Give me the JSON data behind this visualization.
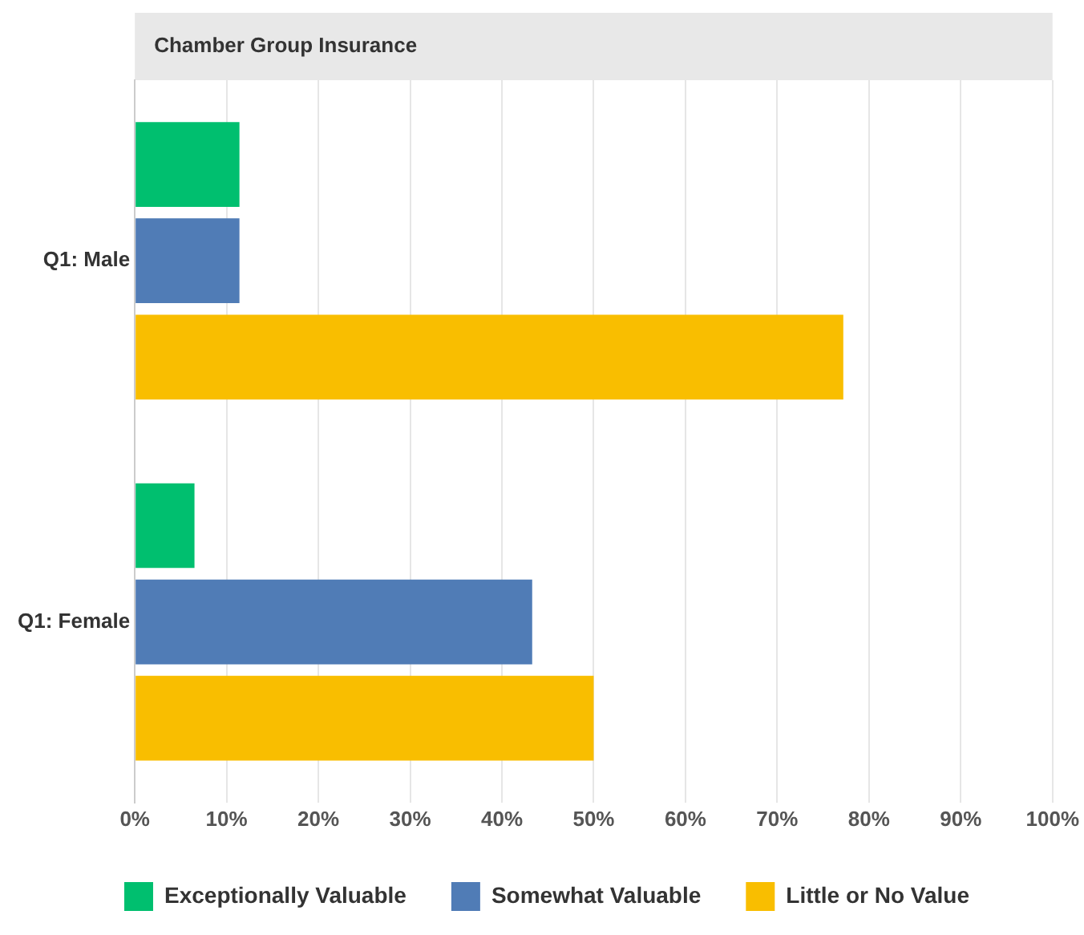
{
  "chart_data": {
    "type": "bar",
    "orientation": "horizontal",
    "title": "Chamber Group Insurance",
    "categories": [
      "Q1: Male",
      "Q1: Female"
    ],
    "series": [
      {
        "name": "Exceptionally Valuable",
        "color": "#00bf6f",
        "values": [
          11.4,
          6.5
        ]
      },
      {
        "name": "Somewhat Valuable",
        "color": "#507cb6",
        "values": [
          11.4,
          43.3
        ]
      },
      {
        "name": "Little or No Value",
        "color": "#f9be00",
        "values": [
          77.2,
          50
        ]
      }
    ],
    "xlim": [
      0,
      100
    ],
    "xticks": [
      {
        "value": 0,
        "label": "0%"
      },
      {
        "value": 10,
        "label": "10%"
      },
      {
        "value": 20,
        "label": "20%"
      },
      {
        "value": 30,
        "label": "30%"
      },
      {
        "value": 40,
        "label": "40%"
      },
      {
        "value": 50,
        "label": "50%"
      },
      {
        "value": 60,
        "label": "60%"
      },
      {
        "value": 70,
        "label": "70%"
      },
      {
        "value": 80,
        "label": "80%"
      },
      {
        "value": 90,
        "label": "90%"
      },
      {
        "value": 100,
        "label": "100%"
      }
    ],
    "grid": "x",
    "legend": "bottom"
  }
}
